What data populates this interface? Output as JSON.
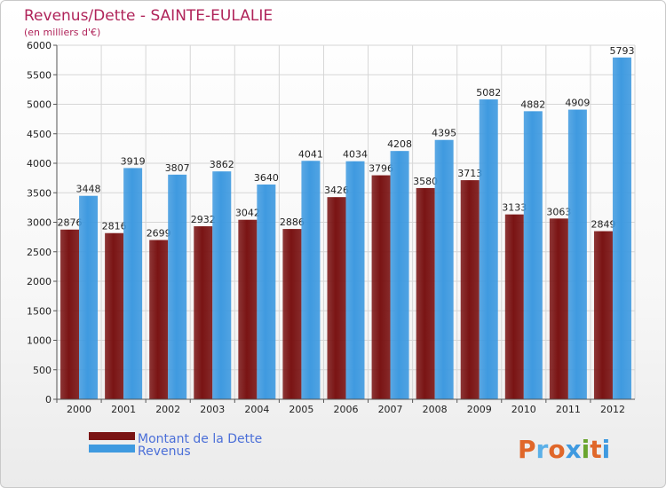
{
  "chart_data": {
    "type": "bar",
    "title": "Revenus/Dette - SAINTE-EULALIE",
    "subtitle": "(en milliers d'€)",
    "categories": [
      "2000",
      "2001",
      "2002",
      "2003",
      "2004",
      "2005",
      "2006",
      "2007",
      "2008",
      "2009",
      "2010",
      "2011",
      "2012"
    ],
    "series": [
      {
        "name": "Montant de la Dette",
        "color": "#7a1414",
        "values": [
          2876,
          2816,
          2699,
          2932,
          3042,
          2886,
          3426,
          3796,
          3580,
          3713,
          3133,
          3063,
          2849
        ]
      },
      {
        "name": "Revenus",
        "color": "#3f9ae0",
        "values": [
          3448,
          3919,
          3807,
          3862,
          3640,
          4041,
          4034,
          4208,
          4395,
          5082,
          4882,
          4909,
          5793
        ]
      }
    ],
    "yticks": [
      0,
      500,
      1000,
      1500,
      2000,
      2500,
      3000,
      3500,
      4000,
      4500,
      5000,
      5500,
      6000
    ],
    "ylim": [
      0,
      6000
    ],
    "grid": true,
    "legend_position": "bottom-left"
  },
  "logo_text": "Proxiti",
  "colors": {
    "title": "#b0245a",
    "legend_text": "#4b6fd8",
    "logo_letters": [
      "#e0672a",
      "#5bb0e8",
      "#e0672a",
      "#3f9ae0",
      "#6aa52e",
      "#e0672a",
      "#3f9ae0"
    ]
  }
}
